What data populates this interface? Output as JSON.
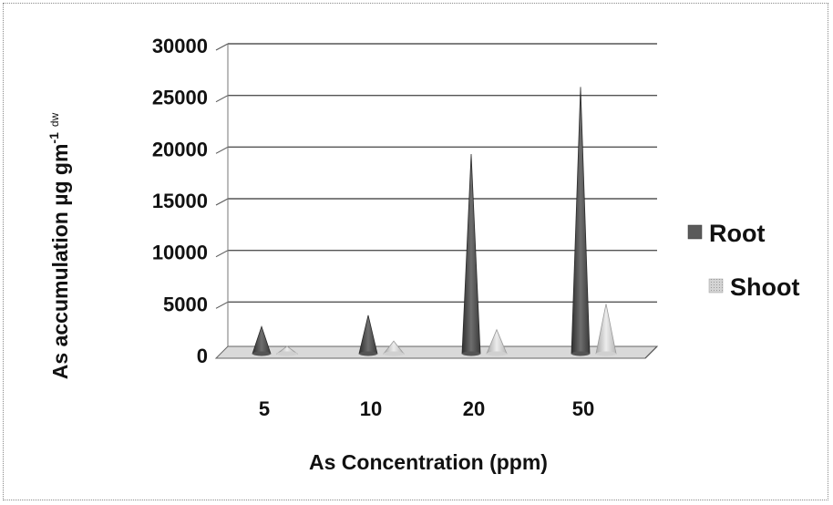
{
  "chart_data": {
    "type": "bar",
    "categories": [
      "5",
      "10",
      "20",
      "50"
    ],
    "series": [
      {
        "name": "Root",
        "values": [
          2800,
          3900,
          19500,
          26000
        ]
      },
      {
        "name": "Shoot",
        "values": [
          900,
          1400,
          2500,
          5000
        ]
      }
    ],
    "xlabel": "As Concentration (ppm)",
    "ylabel": "As accumulation  µg gm",
    "ylabel_sup": "-1",
    "ylabel_sup2": "dw",
    "ylim": [
      0,
      30000
    ],
    "yticks": [
      "0",
      "5000",
      "10000",
      "15000",
      "20000",
      "25000",
      "30000"
    ],
    "grid": true,
    "legend_position": "right",
    "colors": {
      "Root": "#5a5a5a",
      "Shoot": "#c8c8c8",
      "grid": "#555555",
      "floor": "#d9d9d9"
    }
  }
}
